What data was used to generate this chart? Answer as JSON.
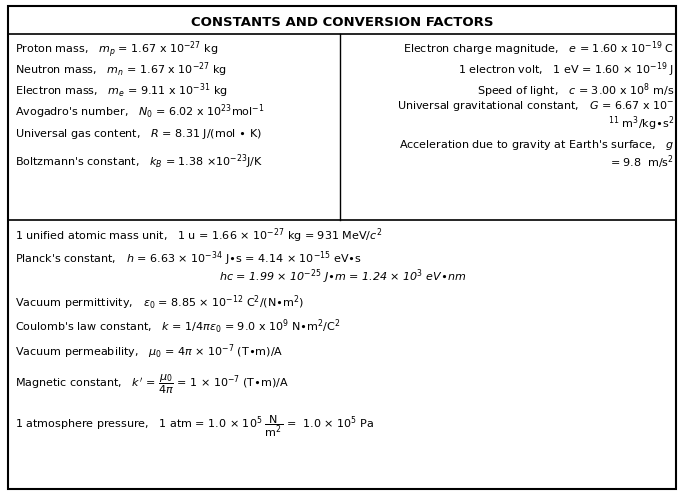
{
  "title": "CONSTANTS AND CONVERSION FACTORS",
  "background_color": "#ffffff",
  "border_color": "#000000",
  "figsize": [
    6.84,
    4.95
  ],
  "dpi": 100,
  "title_fontsize": 9.5,
  "body_fontsize": 8.0,
  "small_fontsize": 7.0
}
